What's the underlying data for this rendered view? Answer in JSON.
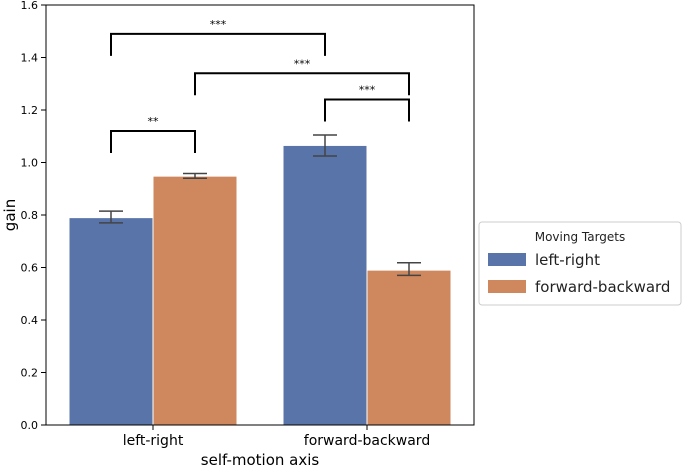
{
  "chart_data": {
    "type": "bar",
    "categories": [
      "left-right",
      "forward-backward"
    ],
    "xlabel": "self-motion axis",
    "ylabel": "gain",
    "ylim": [
      0,
      1.6
    ],
    "yticks": [
      "0.0",
      "0.2",
      "0.4",
      "0.6",
      "0.8",
      "1.0",
      "1.2",
      "1.4",
      "1.6"
    ],
    "grid": false,
    "legend": {
      "title": "Moving Targets",
      "placement": "outside-right"
    },
    "series": [
      {
        "name": "left-right",
        "color": "#5874a8",
        "values": [
          0.79,
          1.065
        ],
        "err_low": [
          0.77,
          1.025
        ],
        "err_high": [
          0.815,
          1.105
        ]
      },
      {
        "name": "forward-backward",
        "color": "#cf875e",
        "values": [
          0.948,
          0.59
        ],
        "err_low": [
          0.94,
          0.57
        ],
        "err_high": [
          0.958,
          0.618
        ]
      }
    ],
    "annotations": [
      {
        "label": "**",
        "from": "left-right / left-right",
        "to": "left-right / forward-backward",
        "y": 1.12
      },
      {
        "label": "***",
        "from": "left-right / left-right",
        "to": "forward-backward / left-right",
        "y": 1.49
      },
      {
        "label": "***",
        "from": "left-right / forward-backward",
        "to": "forward-backward / forward-backward",
        "y": 1.34
      },
      {
        "label": "***",
        "from": "forward-backward / left-right",
        "to": "forward-backward / forward-backward",
        "y": 1.24
      }
    ]
  }
}
